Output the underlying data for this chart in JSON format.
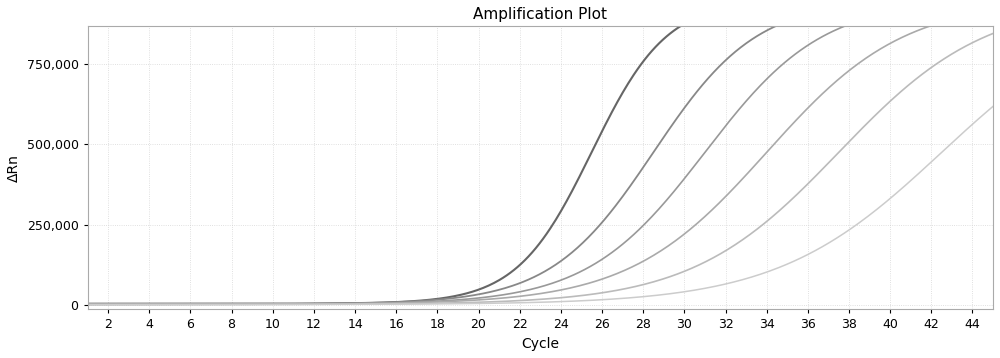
{
  "title": "Amplification Plot",
  "xlabel": "Cycle",
  "ylabel": "ΔRn",
  "x_min": 1,
  "x_max": 45,
  "y_min": -15000,
  "y_max": 870000,
  "x_ticks": [
    2,
    4,
    6,
    8,
    10,
    12,
    14,
    16,
    18,
    20,
    22,
    24,
    26,
    28,
    30,
    32,
    34,
    36,
    38,
    40,
    42,
    44
  ],
  "y_ticks": [
    0,
    250000,
    500000,
    750000
  ],
  "background_color": "#ffffff",
  "grid_color": "#cccccc",
  "curves": [
    {
      "ct": 25.5,
      "plateau": 950000,
      "baseline": 3000,
      "color": "#666666",
      "lw": 1.5,
      "steepness": 0.55
    },
    {
      "ct": 28.5,
      "plateau": 950000,
      "baseline": 1500,
      "color": "#888888",
      "lw": 1.3,
      "steepness": 0.4
    },
    {
      "ct": 31.0,
      "plateau": 950000,
      "baseline": 1000,
      "color": "#999999",
      "lw": 1.2,
      "steepness": 0.35
    },
    {
      "ct": 34.0,
      "plateau": 950000,
      "baseline": 800,
      "color": "#aaaaaa",
      "lw": 1.2,
      "steepness": 0.3
    },
    {
      "ct": 37.5,
      "plateau": 950000,
      "baseline": 500,
      "color": "#bbbbbb",
      "lw": 1.2,
      "steepness": 0.28
    },
    {
      "ct": 42.5,
      "plateau": 950000,
      "baseline": 300,
      "color": "#cccccc",
      "lw": 1.1,
      "steepness": 0.25
    }
  ],
  "title_fontsize": 11,
  "label_fontsize": 10,
  "tick_fontsize": 9
}
